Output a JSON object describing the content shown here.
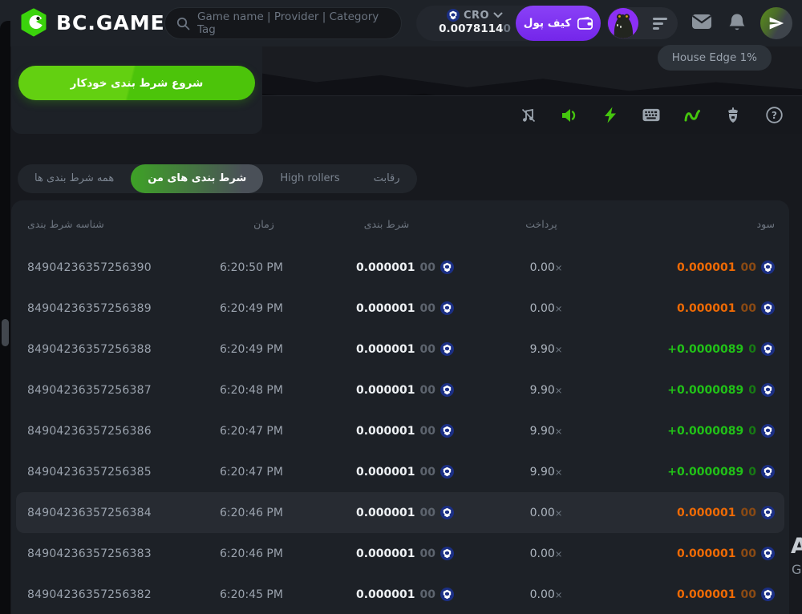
{
  "header": {
    "brand": "BC.GAME",
    "search_placeholder": "Game name | Provider | Category Tag",
    "currency": {
      "code": "CRO",
      "balance_main": "0.0078114",
      "balance_dim": "0"
    },
    "wallet_button_label": "کیف پول",
    "icons": [
      "bcgame-logo-icon",
      "search-icon",
      "cro-coin-icon",
      "chevron-down-icon",
      "wallet-icon",
      "avatar",
      "hamburger-menu-icon",
      "mail-icon",
      "bell-icon",
      "support-icon"
    ]
  },
  "game": {
    "auto_bet_button_label": "شروع شرط بندی خودکار",
    "house_edge_tooltip": "House Edge 1%",
    "toolbar_icons": [
      "music-off-icon",
      "sound-icon",
      "turbo-icon",
      "hotkeys-icon",
      "live-stats-icon",
      "seeds-icon",
      "help-icon"
    ]
  },
  "tabs": [
    {
      "label": "همه شرط بندی ها",
      "active": false
    },
    {
      "label": "شرط بندی های من",
      "active": true
    },
    {
      "label": "High rollers",
      "active": false
    },
    {
      "label": "رقابت",
      "active": false
    }
  ],
  "table": {
    "columns": [
      "شناسه شرط بندی",
      "زمان",
      "شرط بندی",
      "پرداخت",
      "سود"
    ],
    "payout_mult_symbol": "×",
    "rows": [
      {
        "id": "84904236357256390",
        "time": "6:20:50 PM",
        "bet": "0.000001",
        "bet_dim": "00",
        "payout": "0.00",
        "profit": "0.000001",
        "profit_dim": "00",
        "win": false,
        "highlight": false
      },
      {
        "id": "84904236357256389",
        "time": "6:20:49 PM",
        "bet": "0.000001",
        "bet_dim": "00",
        "payout": "0.00",
        "profit": "0.000001",
        "profit_dim": "00",
        "win": false,
        "highlight": false
      },
      {
        "id": "84904236357256388",
        "time": "6:20:49 PM",
        "bet": "0.000001",
        "bet_dim": "00",
        "payout": "9.90",
        "profit": "+0.0000089",
        "profit_dim": "0",
        "win": true,
        "highlight": false
      },
      {
        "id": "84904236357256387",
        "time": "6:20:48 PM",
        "bet": "0.000001",
        "bet_dim": "00",
        "payout": "9.90",
        "profit": "+0.0000089",
        "profit_dim": "0",
        "win": true,
        "highlight": false
      },
      {
        "id": "84904236357256386",
        "time": "6:20:47 PM",
        "bet": "0.000001",
        "bet_dim": "00",
        "payout": "9.90",
        "profit": "+0.0000089",
        "profit_dim": "0",
        "win": true,
        "highlight": false
      },
      {
        "id": "84904236357256385",
        "time": "6:20:47 PM",
        "bet": "0.000001",
        "bet_dim": "00",
        "payout": "9.90",
        "profit": "+0.0000089",
        "profit_dim": "0",
        "win": true,
        "highlight": false
      },
      {
        "id": "84904236357256384",
        "time": "6:20:46 PM",
        "bet": "0.000001",
        "bet_dim": "00",
        "payout": "0.00",
        "profit": "0.000001",
        "profit_dim": "00",
        "win": false,
        "highlight": true
      },
      {
        "id": "84904236357256383",
        "time": "6:20:46 PM",
        "bet": "0.000001",
        "bet_dim": "00",
        "payout": "0.00",
        "profit": "0.000001",
        "profit_dim": "00",
        "win": false,
        "highlight": false
      },
      {
        "id": "84904236357256382",
        "time": "6:20:45 PM",
        "bet": "0.000001",
        "bet_dim": "00",
        "payout": "0.00",
        "profit": "0.000001",
        "profit_dim": "00",
        "win": false,
        "highlight": false
      }
    ]
  },
  "fragments": {
    "edge_letter_top": "A",
    "edge_letter_bottom": "G"
  },
  "colors": {
    "accent_green": "#4ec70b",
    "purple": "#7d2bf0",
    "win_green": "#21c117",
    "loss_orange": "#ee6a05",
    "coin_blue": "#1b2f85",
    "panel": "#1d2127",
    "page_bg": "#17191e"
  }
}
